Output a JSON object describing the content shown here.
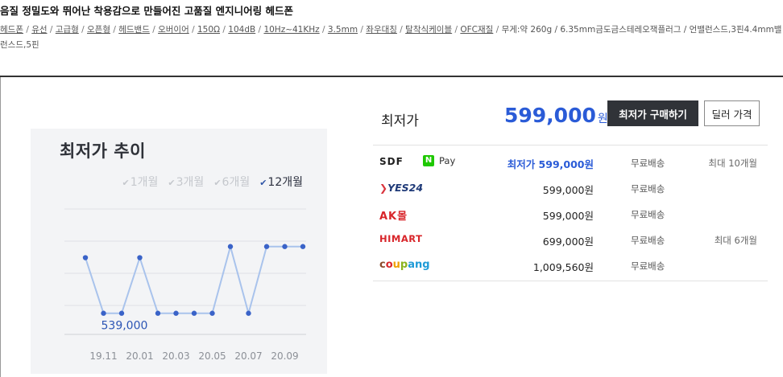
{
  "product": {
    "title": "음질 정밀도와 뛰어난 착용감으로 만들어진 고품질 엔지니어링 헤드폰",
    "specs": [
      "헤드폰",
      "유선",
      "고급형",
      "오픈형",
      "헤드밴드",
      "오버이어",
      "150Ω",
      "104dB",
      "10Hz~41KHz",
      "3.5mm",
      "좌우대칭",
      "탈착식케이블",
      "OFC재질"
    ],
    "specs_plain": "무게:약 260g / 6.35mm금도금스테레오잭플러그 / 언밸런스드,3핀4.4mm밸런스드,5핀"
  },
  "chart_card": {
    "title": "최저가 추이",
    "periods": [
      {
        "label": "1개월",
        "active": false
      },
      {
        "label": "3개월",
        "active": false
      },
      {
        "label": "6개월",
        "active": false
      },
      {
        "label": "12개월",
        "active": true
      }
    ],
    "min_label": "539,000",
    "x_ticks": [
      "19.11",
      "20.01",
      "20.03",
      "20.05",
      "20.07",
      "20.09"
    ]
  },
  "chart_data": {
    "type": "line",
    "title": "최저가 추이",
    "x": [
      "19.10",
      "19.11",
      "19.12",
      "20.01",
      "20.02",
      "20.03",
      "20.04",
      "20.05",
      "20.06",
      "20.07",
      "20.08",
      "20.09",
      "20.10"
    ],
    "values": [
      589000,
      539000,
      539000,
      589000,
      539000,
      539000,
      539000,
      539000,
      599000,
      539000,
      599000,
      599000,
      599000
    ],
    "ylim": [
      520000,
      640000
    ],
    "grid": true,
    "annotations": [
      {
        "text": "539,000"
      }
    ]
  },
  "price_panel": {
    "lowest_label": "최저가",
    "lowest_price": "599,000",
    "won": "원",
    "buy_button": "최저가 구매하기",
    "dealer_button": "딜러 가격"
  },
  "shops": [
    {
      "logo": "SDF",
      "npay": "Pay",
      "price": "최저가 599,000원",
      "shipping": "무료배송",
      "card": "최대 10개월",
      "best": true
    },
    {
      "logo": "YES24",
      "price": "599,000원",
      "shipping": "무료배송",
      "card": "",
      "best": false
    },
    {
      "logo": "AK몰",
      "price": "599,000원",
      "shipping": "무료배송",
      "card": "",
      "best": false
    },
    {
      "logo": "HIMART",
      "price": "699,000원",
      "shipping": "무료배송",
      "card": "최대 6개월",
      "best": false
    },
    {
      "logo": "coupang",
      "price": "1,009,560원",
      "shipping": "무료배송",
      "card": "",
      "best": false
    }
  ],
  "colors": {
    "accent": "#2a5bd7",
    "line": "#a9c3ec",
    "point": "#3a63c8",
    "buy_button_bg": "#303338"
  }
}
